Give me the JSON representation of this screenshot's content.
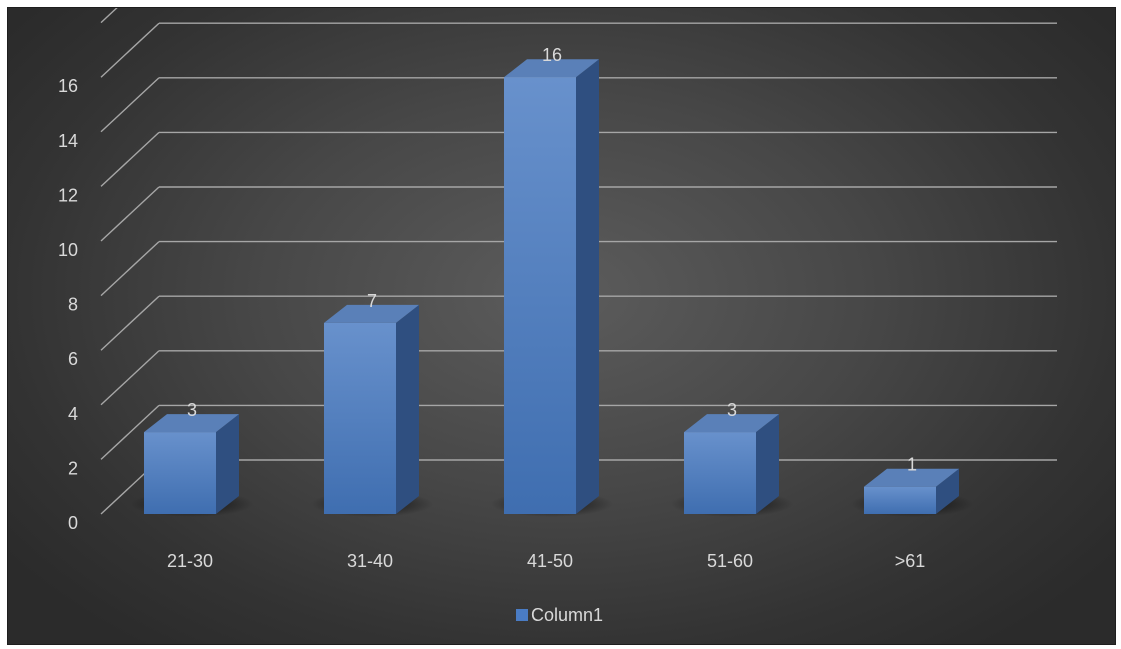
{
  "chart_data": {
    "type": "bar",
    "categories": [
      "21-30",
      "31-40",
      "41-50",
      "51-60",
      ">61"
    ],
    "series": [
      {
        "name": "Column1",
        "values": [
          3,
          7,
          16,
          3,
          1
        ]
      }
    ],
    "ylim": [
      0,
      18
    ],
    "yticks": [
      "0",
      "2",
      "4",
      "6",
      "8",
      "10",
      "12",
      "14",
      "16"
    ],
    "data_labels": [
      "3",
      "7",
      "16",
      "3",
      "1"
    ],
    "legend": {
      "position": "bottom",
      "entries": [
        "Column1"
      ]
    },
    "grid": true,
    "style": "3d-column"
  },
  "colors": {
    "bar_front_top": "#6891cc",
    "bar_front_bottom": "#3f6eb0",
    "bar_side": "#2f4f80",
    "bar_top": "#5a80b8",
    "gridline": "#a6a6a6",
    "text": "#d9d9d9",
    "legend_swatch": "#4a7cc4"
  }
}
